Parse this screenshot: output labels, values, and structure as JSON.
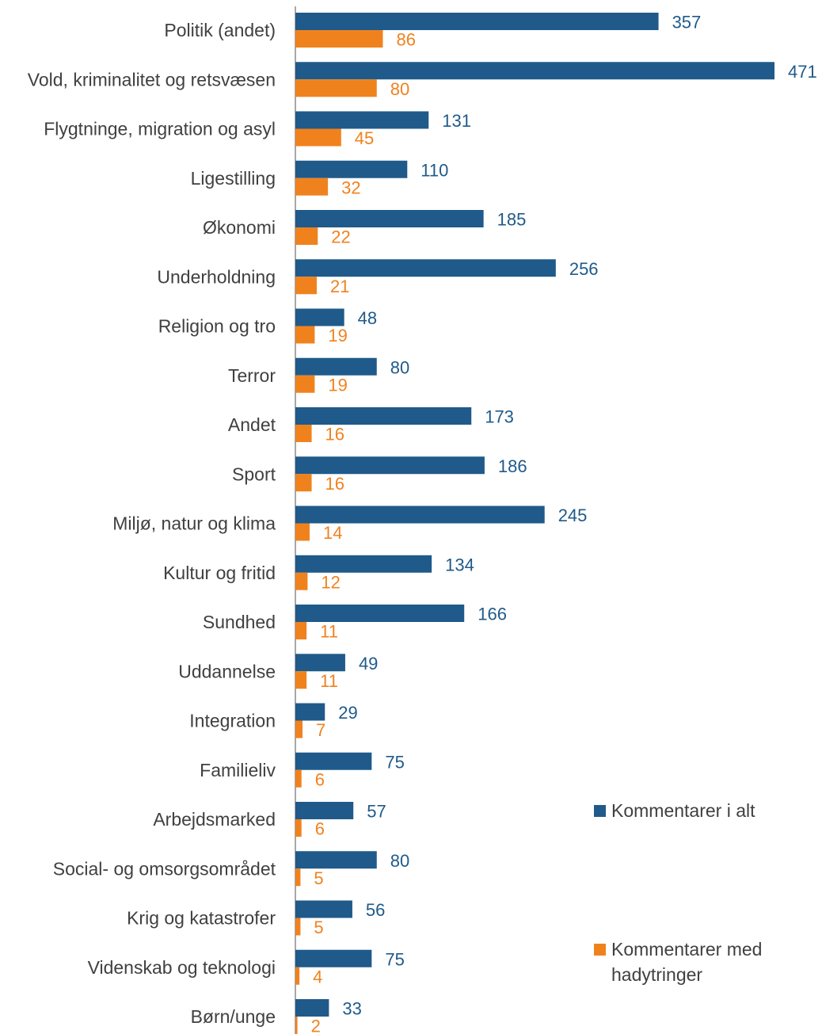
{
  "chart_data": {
    "type": "bar",
    "orientation": "horizontal",
    "categories": [
      "Politik (andet)",
      "Vold, kriminalitet og retsvæsen",
      "Flygtninge, migration og asyl",
      "Ligestilling",
      "Økonomi",
      "Underholdning",
      "Religion og tro",
      "Terror",
      "Andet",
      "Sport",
      "Miljø, natur og klima",
      "Kultur og fritid",
      "Sundhed",
      "Uddannelse",
      "Integration",
      "Familieliv",
      "Arbejdsmarked",
      "Social- og omsorgsområdet",
      "Krig og katastrofer",
      "Videnskab og teknologi",
      "Børn/unge"
    ],
    "series": [
      {
        "name": "Kommentarer i alt",
        "color": "#1f5a8a",
        "values": [
          357,
          471,
          131,
          110,
          185,
          256,
          48,
          80,
          173,
          186,
          245,
          134,
          166,
          49,
          29,
          75,
          57,
          80,
          56,
          75,
          33
        ]
      },
      {
        "name": "Kommentarer med hadytringer",
        "color": "#f0821e",
        "values": [
          86,
          80,
          45,
          32,
          22,
          21,
          19,
          19,
          16,
          16,
          14,
          12,
          11,
          11,
          7,
          6,
          6,
          5,
          5,
          4,
          2
        ]
      }
    ],
    "xlim": [
      0,
      471
    ],
    "grid": false,
    "data_labels": true,
    "legend": "right",
    "title": "",
    "xlabel": "",
    "ylabel": ""
  }
}
